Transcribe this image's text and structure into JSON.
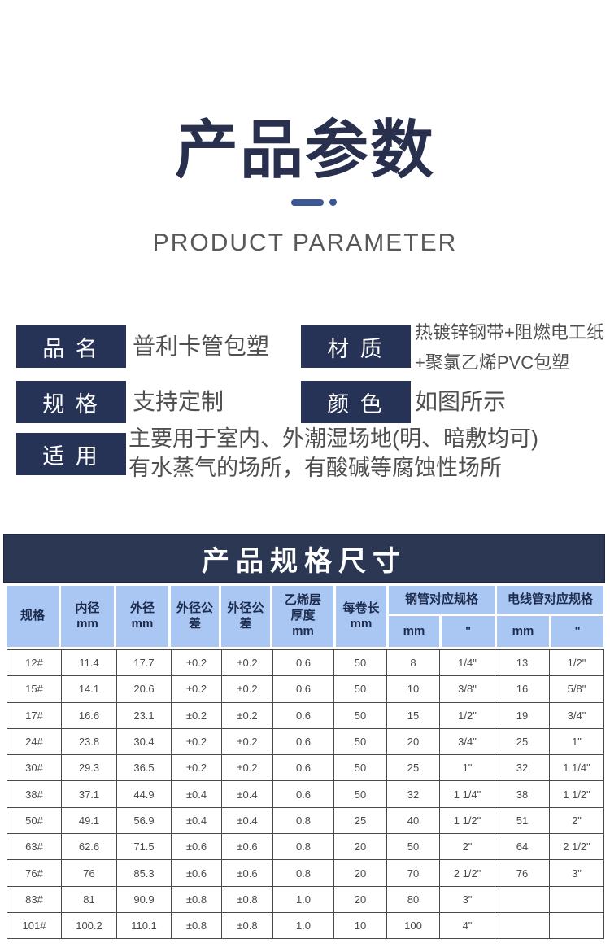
{
  "header": {
    "title": "产品参数",
    "subtitle": "PRODUCT PARAMETER"
  },
  "specs": [
    {
      "label": "品 名",
      "lines": [
        "普利卡管包塑"
      ]
    },
    {
      "label": "材 质",
      "lines": [
        "热镀锌钢带+阻燃电工纸",
        "+聚氯乙烯PVC包塑"
      ]
    },
    {
      "label": "规 格",
      "lines": [
        "支持定制"
      ]
    },
    {
      "label": "颜 色",
      "lines": [
        "如图所示"
      ]
    },
    {
      "label": "适 用",
      "lines": [
        "主要用于室内、外潮湿场地(明、暗敷均可)",
        "有水蒸气的场所，有酸碱等腐蚀性场所"
      ]
    }
  ],
  "table": {
    "banner": "产品规格尺寸",
    "columns": [
      {
        "lines": [
          "规格"
        ]
      },
      {
        "lines": [
          "内径",
          "mm"
        ]
      },
      {
        "lines": [
          "外径",
          "mm"
        ]
      },
      {
        "lines": [
          "外径公",
          "差"
        ]
      },
      {
        "lines": [
          "外径公",
          "差"
        ]
      },
      {
        "lines": [
          "乙烯层",
          "厚度",
          "mm"
        ]
      },
      {
        "lines": [
          "每卷长",
          "mm"
        ]
      }
    ],
    "groups": [
      {
        "label": "钢管对应规格",
        "sub": [
          "mm",
          "\""
        ]
      },
      {
        "label": "电线管对应规格",
        "sub": [
          "mm",
          "\""
        ]
      }
    ],
    "rows": [
      [
        "12#",
        "11.4",
        "17.7",
        "±0.2",
        "±0.2",
        "0.6",
        "50",
        "8",
        "1/4\"",
        "13",
        "1/2\""
      ],
      [
        "15#",
        "14.1",
        "20.6",
        "±0.2",
        "±0.2",
        "0.6",
        "50",
        "10",
        "3/8\"",
        "16",
        "5/8\""
      ],
      [
        "17#",
        "16.6",
        "23.1",
        "±0.2",
        "±0.2",
        "0.6",
        "50",
        "15",
        "1/2\"",
        "19",
        "3/4\""
      ],
      [
        "24#",
        "23.8",
        "30.4",
        "±0.2",
        "±0.2",
        "0.6",
        "50",
        "20",
        "3/4\"",
        "25",
        "1\""
      ],
      [
        "30#",
        "29.3",
        "36.5",
        "±0.2",
        "±0.2",
        "0.6",
        "50",
        "25",
        "1\"",
        "32",
        "1 1/4\""
      ],
      [
        "38#",
        "37.1",
        "44.9",
        "±0.4",
        "±0.4",
        "0.6",
        "50",
        "32",
        "1 1/4\"",
        "38",
        "1 1/2\""
      ],
      [
        "50#",
        "49.1",
        "56.9",
        "±0.4",
        "±0.4",
        "0.8",
        "25",
        "40",
        "1 1/2\"",
        "51",
        "2\""
      ],
      [
        "63#",
        "62.6",
        "71.5",
        "±0.6",
        "±0.6",
        "0.8",
        "20",
        "50",
        "2\"",
        "64",
        "2 1/2\""
      ],
      [
        "76#",
        "76",
        "85.3",
        "±0.6",
        "±0.6",
        "0.8",
        "20",
        "70",
        "2 1/2\"",
        "76",
        "3\""
      ],
      [
        "83#",
        "81",
        "90.9",
        "±0.8",
        "±0.8",
        "1.0",
        "20",
        "80",
        "3\"",
        "",
        ""
      ],
      [
        "101#",
        "100.2",
        "110.1",
        "±0.8",
        "±0.8",
        "1.0",
        "10",
        "100",
        "4\"",
        "",
        ""
      ]
    ]
  },
  "colors": {
    "accent_navy": "#273356",
    "banner_navy": "#2b3753",
    "header_blue": "#a9c7f2",
    "dash_blue": "#3c5795"
  }
}
